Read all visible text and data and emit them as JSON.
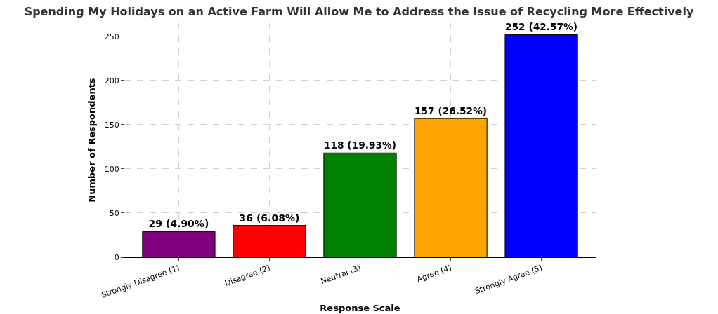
{
  "chart_data": {
    "type": "bar",
    "title": "Spending My Holidays on an Active Farm Will Allow Me to Address the Issue of Recycling More Effectively",
    "xlabel": "Response Scale",
    "ylabel": "Number of Respondents",
    "categories": [
      "Strongly Disagree (1)",
      "Disagree (2)",
      "Neutral (3)",
      "Agree (4)",
      "Strongly Agree (5)"
    ],
    "values": [
      29,
      36,
      118,
      157,
      252
    ],
    "colors": [
      "#800080",
      "#ff0000",
      "#008000",
      "#ffa500",
      "#0000ff"
    ],
    "value_labels": [
      "29 (4.90%)",
      "36 (6.08%)",
      "118 (19.93%)",
      "157 (26.52%)",
      "252 (42.57%)"
    ],
    "ylim": [
      0,
      265
    ],
    "yticks": [
      0,
      50,
      100,
      150,
      200,
      250
    ],
    "grid": true
  }
}
